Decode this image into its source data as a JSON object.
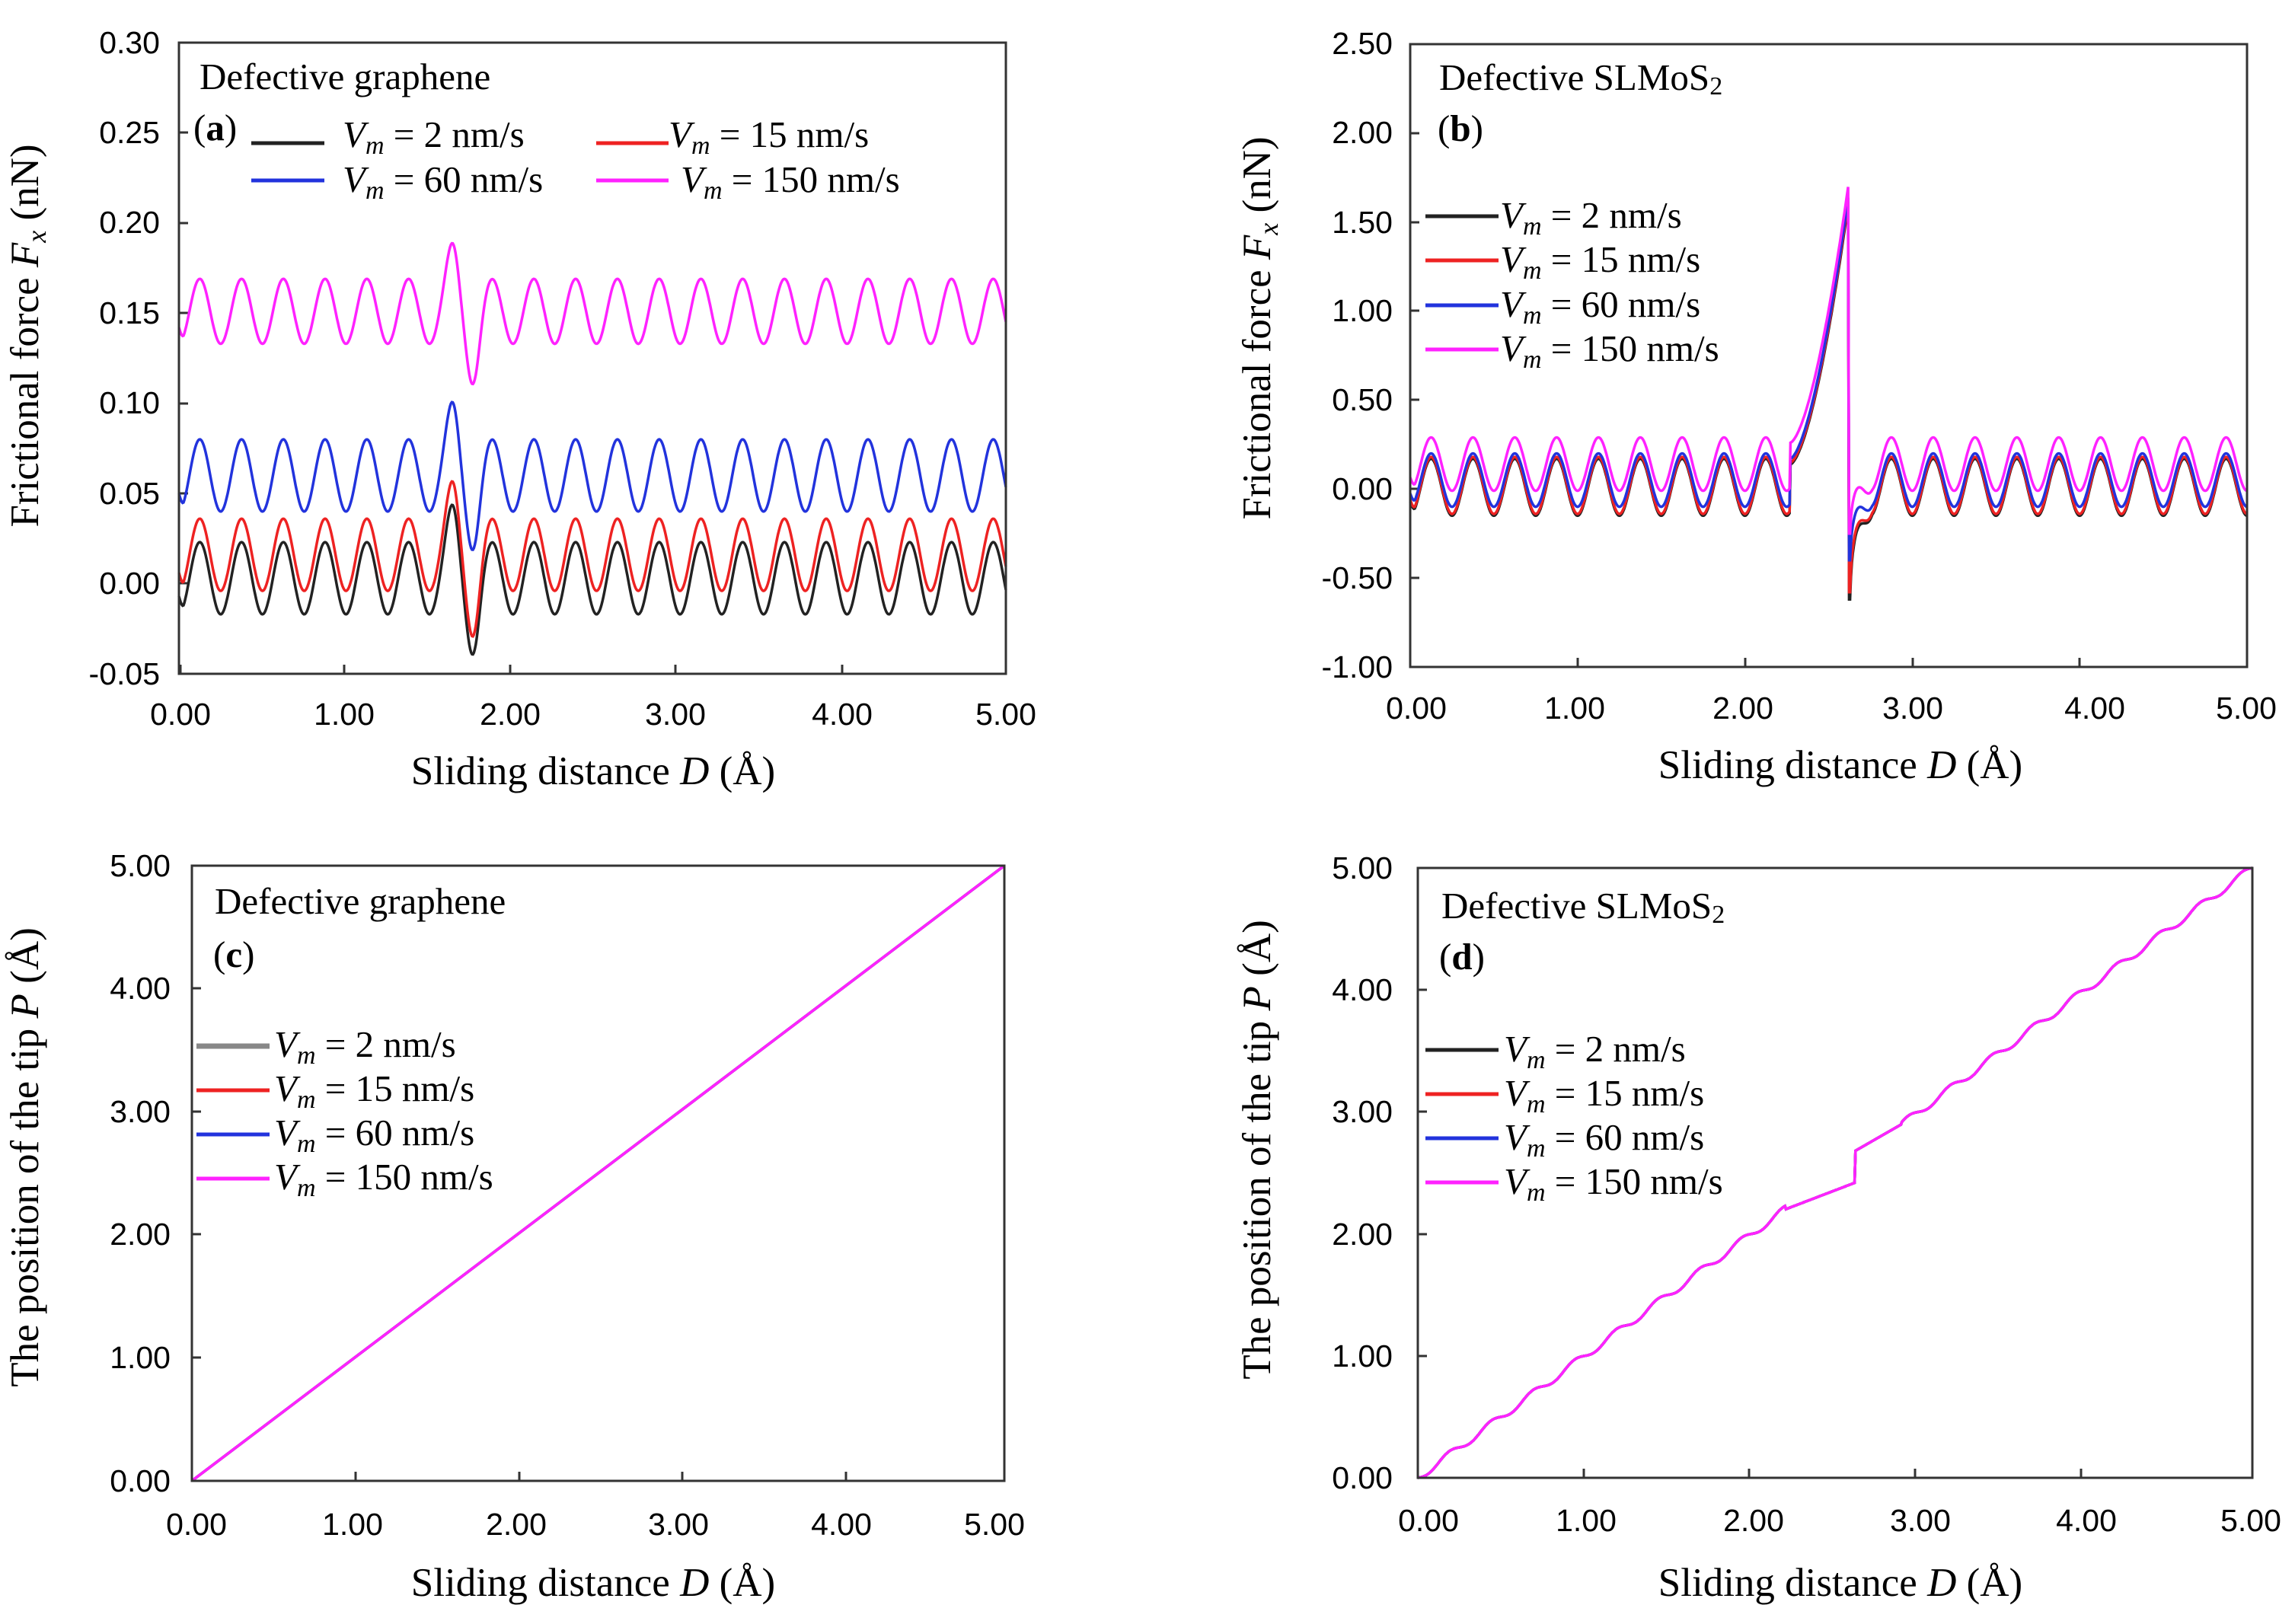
{
  "colors": {
    "2 nm/s": "#222222",
    "15 nm/s": "#ee2222",
    "60 nm/s": "#2233dd",
    "150 nm/s": "#ff22ff"
  },
  "panels": {
    "a": {
      "letter": "a",
      "title": "Defective graphene",
      "legend": [
        {
          "sym": "V",
          "sub": "m",
          "rest": " = 2 nm/s"
        },
        {
          "sym": "V",
          "sub": "m",
          "rest": " = 15 nm/s"
        },
        {
          "sym": "V",
          "sub": "m",
          "rest": " = 60 nm/s"
        },
        {
          "sym": "V",
          "sub": "m",
          "rest": " = 150 nm/s"
        }
      ],
      "ytitle": {
        "pre": "Frictional force ",
        "sym": "F",
        "sub": "x",
        "post": " (nN)"
      },
      "xtitle": {
        "pre": "Sliding distance ",
        "sym": "D",
        "post": " (Å)"
      },
      "xticks": [
        "0.00",
        "1.00",
        "2.00",
        "3.00",
        "4.00",
        "5.00"
      ],
      "yticks": [
        "-0.05",
        "0.00",
        "0.05",
        "0.10",
        "0.15",
        "0.20",
        "0.25",
        "0.30"
      ]
    },
    "b": {
      "letter": "b",
      "title": "Defective SLMoS",
      "title_sub": "2",
      "legend": [
        {
          "sym": "V",
          "sub": "m",
          "rest": " = 2 nm/s"
        },
        {
          "sym": "V",
          "sub": "m",
          "rest": " = 15 nm/s"
        },
        {
          "sym": "V",
          "sub": "m",
          "rest": " = 60 nm/s"
        },
        {
          "sym": "V",
          "sub": "m",
          "rest": " = 150 nm/s"
        }
      ],
      "ytitle": {
        "pre": "Frictional force ",
        "sym": "F",
        "sub": "x",
        "post": " (nN)"
      },
      "xtitle": {
        "pre": "Sliding distance ",
        "sym": "D",
        "post": " (Å)"
      },
      "xticks": [
        "0.00",
        "1.00",
        "2.00",
        "3.00",
        "4.00",
        "5.00"
      ],
      "yticks": [
        "-1.00",
        "-0.50",
        "0.00",
        "0.50",
        "1.00",
        "1.50",
        "2.00",
        "2.50"
      ]
    },
    "c": {
      "letter": "c",
      "title": "Defective graphene",
      "legend": [
        {
          "sym": "V",
          "sub": "m",
          "rest": " = 2 nm/s"
        },
        {
          "sym": "V",
          "sub": "m",
          "rest": " = 15 nm/s"
        },
        {
          "sym": "V",
          "sub": "m",
          "rest": " = 60 nm/s"
        },
        {
          "sym": "V",
          "sub": "m",
          "rest": " = 150 nm/s"
        }
      ],
      "ytitle": {
        "pre": "The position of the tip ",
        "sym": "P",
        "post": " (Å)"
      },
      "xtitle": {
        "pre": "Sliding distance ",
        "sym": "D",
        "post": " (Å)"
      },
      "xticks": [
        "0.00",
        "1.00",
        "2.00",
        "3.00",
        "4.00",
        "5.00"
      ],
      "yticks": [
        "0.00",
        "1.00",
        "2.00",
        "3.00",
        "4.00",
        "5.00"
      ]
    },
    "d": {
      "letter": "d",
      "title": "Defective SLMoS",
      "title_sub": "2",
      "legend": [
        {
          "sym": "V",
          "sub": "m",
          "rest": " = 2 nm/s"
        },
        {
          "sym": "V",
          "sub": "m",
          "rest": " = 15 nm/s"
        },
        {
          "sym": "V",
          "sub": "m",
          "rest": " = 60 nm/s"
        },
        {
          "sym": "V",
          "sub": "m",
          "rest": " = 150 nm/s"
        }
      ],
      "ytitle": {
        "pre": "The position of the tip ",
        "sym": "P",
        "post": " (Å)"
      },
      "xtitle": {
        "pre": "Sliding distance ",
        "sym": "D",
        "post": " (Å)"
      },
      "xticks": [
        "0.00",
        "1.00",
        "2.00",
        "3.00",
        "4.00",
        "5.00"
      ],
      "yticks": [
        "0.00",
        "1.00",
        "2.00",
        "3.00",
        "4.00",
        "5.00"
      ]
    }
  },
  "chart_data": [
    {
      "panel": "a",
      "type": "line",
      "title": "Defective graphene",
      "xlabel": "Sliding distance D (Å)",
      "ylabel": "Frictional force Fx (nN)",
      "xlim": [
        0,
        5
      ],
      "ylim": [
        -0.05,
        0.3
      ],
      "grid": false,
      "legend_position": "top-left",
      "series": [
        {
          "name": "Vm = 2 nm/s",
          "model": "oscillation",
          "period_A": 0.2525,
          "mean_nN": 0.003,
          "amplitude_nN": 0.02,
          "defect_at_A": 1.7,
          "defect_peak_nN": 0.045,
          "defect_min_nN": -0.04
        },
        {
          "name": "Vm = 15 nm/s",
          "model": "oscillation",
          "period_A": 0.2525,
          "mean_nN": 0.016,
          "amplitude_nN": 0.02,
          "defect_at_A": 1.7,
          "defect_peak_nN": 0.058,
          "defect_min_nN": -0.03
        },
        {
          "name": "Vm = 60 nm/s",
          "model": "oscillation",
          "period_A": 0.2525,
          "mean_nN": 0.06,
          "amplitude_nN": 0.02,
          "defect_at_A": 1.7,
          "defect_peak_nN": 0.102,
          "defect_min_nN": 0.018
        },
        {
          "name": "Vm = 150 nm/s",
          "model": "oscillation",
          "period_A": 0.2525,
          "mean_nN": 0.151,
          "amplitude_nN": 0.018,
          "defect_at_A": 1.7,
          "defect_peak_nN": 0.19,
          "defect_min_nN": 0.11
        }
      ]
    },
    {
      "panel": "b",
      "type": "line",
      "title": "Defective SLMoS2",
      "xlabel": "Sliding distance D (Å)",
      "ylabel": "Frictional force Fx (nN)",
      "xlim": [
        0,
        5
      ],
      "ylim": [
        -1.0,
        2.5
      ],
      "grid": false,
      "legend_position": "left",
      "series": [
        {
          "name": "Vm = 2 nm/s",
          "model": "oscillation",
          "period_A": 0.25,
          "mean_nN": 0.01,
          "amplitude_nN": 0.16,
          "defect_at_A": 2.62,
          "defect_peak_nN": 1.62,
          "defect_min_nN": -0.62
        },
        {
          "name": "Vm = 15 nm/s",
          "model": "oscillation",
          "period_A": 0.25,
          "mean_nN": 0.02,
          "amplitude_nN": 0.16,
          "defect_at_A": 2.62,
          "defect_peak_nN": 1.64,
          "defect_min_nN": -0.58
        },
        {
          "name": "Vm = 60 nm/s",
          "model": "oscillation",
          "period_A": 0.25,
          "mean_nN": 0.05,
          "amplitude_nN": 0.15,
          "defect_at_A": 2.62,
          "defect_peak_nN": 1.66,
          "defect_min_nN": -0.4
        },
        {
          "name": "Vm = 150 nm/s",
          "model": "oscillation",
          "period_A": 0.25,
          "mean_nN": 0.14,
          "amplitude_nN": 0.15,
          "defect_at_A": 2.62,
          "defect_peak_nN": 1.72,
          "defect_min_nN": -0.25
        }
      ]
    },
    {
      "panel": "c",
      "type": "line",
      "title": "Defective graphene",
      "xlabel": "Sliding distance D (Å)",
      "ylabel": "The position of the tip P (Å)",
      "xlim": [
        0,
        5
      ],
      "ylim": [
        0,
        5
      ],
      "grid": false,
      "legend_position": "left",
      "series": [
        {
          "name": "Vm = 2 nm/s",
          "x": [
            0,
            5
          ],
          "y": [
            0,
            5
          ]
        },
        {
          "name": "Vm = 15 nm/s",
          "x": [
            0,
            5
          ],
          "y": [
            0,
            5
          ]
        },
        {
          "name": "Vm = 60 nm/s",
          "x": [
            0,
            5
          ],
          "y": [
            0,
            5
          ]
        },
        {
          "name": "Vm = 150 nm/s",
          "x": [
            0,
            5
          ],
          "y": [
            0,
            5
          ]
        }
      ]
    },
    {
      "panel": "d",
      "type": "line",
      "title": "Defective SLMoS2",
      "xlabel": "Sliding distance D (Å)",
      "ylabel": "The position of the tip P (Å)",
      "xlim": [
        0,
        5
      ],
      "ylim": [
        0,
        5
      ],
      "grid": false,
      "legend_position": "left",
      "series": [
        {
          "name": "Vm = 2 nm/s",
          "model": "stair",
          "period_A": 0.25,
          "wiggle_A": 0.03,
          "jump_at_A": 2.62,
          "before_jump": 2.42,
          "after_jump": 2.68
        },
        {
          "name": "Vm = 15 nm/s",
          "model": "stair",
          "period_A": 0.25,
          "wiggle_A": 0.03,
          "jump_at_A": 2.62,
          "before_jump": 2.42,
          "after_jump": 2.68
        },
        {
          "name": "Vm = 60 nm/s",
          "model": "stair",
          "period_A": 0.25,
          "wiggle_A": 0.03,
          "jump_at_A": 2.62,
          "before_jump": 2.42,
          "after_jump": 2.68
        },
        {
          "name": "Vm = 150 nm/s",
          "model": "stair",
          "period_A": 0.25,
          "wiggle_A": 0.03,
          "jump_at_A": 2.62,
          "before_jump": 2.42,
          "after_jump": 2.68
        }
      ]
    }
  ]
}
